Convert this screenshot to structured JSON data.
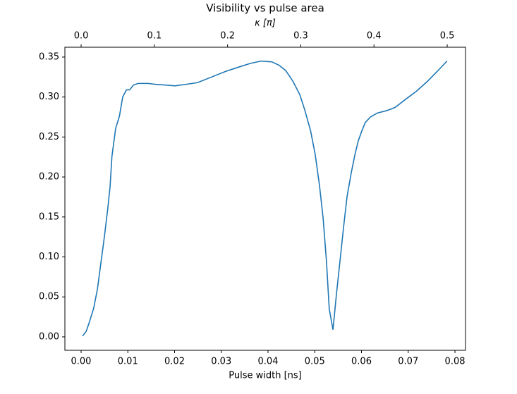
{
  "chart_data": {
    "type": "line",
    "title": "Visibility vs pulse area",
    "x_label": "Pulse width [ns]",
    "x2_label": "κ [π]",
    "xlim": [
      -0.00347,
      0.08226
    ],
    "xticks": [
      {
        "value": 0,
        "label": "0.00"
      },
      {
        "value": 0.01,
        "label": "0.01"
      },
      {
        "value": 0.02,
        "label": "0.02"
      },
      {
        "value": 0.03,
        "label": "0.03"
      },
      {
        "value": 0.04,
        "label": "0.04"
      },
      {
        "value": 0.05,
        "label": "0.05"
      },
      {
        "value": 0.06,
        "label": "0.06"
      },
      {
        "value": 0.07,
        "label": "0.07"
      },
      {
        "value": 0.08,
        "label": "0.08"
      }
    ],
    "x2lim": [
      -0.0222,
      0.525
    ],
    "x2ticks": [
      {
        "value": 0,
        "label": "0.0"
      },
      0.1,
      0.2,
      0.3,
      0.4,
      0.5
    ],
    "ylim": [
      -0.0168,
      0.3623
    ],
    "yticks": [
      {
        "value": 0,
        "label": "0.00"
      },
      0.05,
      {
        "value": 0.1,
        "label": "0.10"
      },
      0.15,
      {
        "value": 0.2,
        "label": "0.20"
      },
      0.25,
      {
        "value": 0.3,
        "label": "0.30"
      },
      0.35
    ],
    "x": [
      0.0003,
      0.0011,
      0.0018,
      0.0027,
      0.0035,
      0.0042,
      0.005,
      0.0057,
      0.0062,
      0.0066,
      0.0074,
      0.0082,
      0.0089,
      0.0097,
      0.0104,
      0.0112,
      0.0122,
      0.0133,
      0.0143,
      0.0158,
      0.0181,
      0.0201,
      0.0226,
      0.0249,
      0.0279,
      0.0309,
      0.034,
      0.0362,
      0.0385,
      0.0408,
      0.0423,
      0.0438,
      0.0453,
      0.0468,
      0.0478,
      0.0491,
      0.0501,
      0.051,
      0.0518,
      0.0525,
      0.0531,
      0.0539,
      0.0546,
      0.0554,
      0.0562,
      0.0569,
      0.0578,
      0.0586,
      0.0593,
      0.0601,
      0.0608,
      0.0619,
      0.0634,
      0.0654,
      0.0672,
      0.0694,
      0.0717,
      0.074,
      0.0762,
      0.0783
    ],
    "series": [
      {
        "color": "#1f77b4",
        "values": [
          0.001,
          0.007,
          0.019,
          0.036,
          0.06,
          0.091,
          0.126,
          0.16,
          0.188,
          0.226,
          0.261,
          0.276,
          0.3,
          0.309,
          0.309,
          0.315,
          0.317,
          0.317,
          0.317,
          0.316,
          0.315,
          0.314,
          0.316,
          0.318,
          0.325,
          0.332,
          0.338,
          0.342,
          0.345,
          0.344,
          0.34,
          0.333,
          0.32,
          0.303,
          0.285,
          0.258,
          0.228,
          0.19,
          0.148,
          0.095,
          0.035,
          0.009,
          0.051,
          0.095,
          0.139,
          0.175,
          0.205,
          0.228,
          0.245,
          0.258,
          0.268,
          0.275,
          0.28,
          0.283,
          0.287,
          0.297,
          0.307,
          0.319,
          0.332,
          0.345
        ]
      }
    ]
  }
}
